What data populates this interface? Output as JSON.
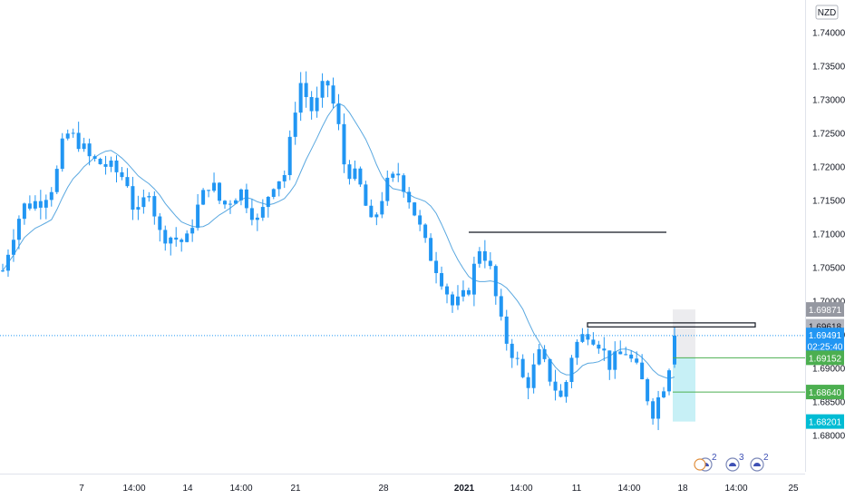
{
  "chart_data": {
    "type": "candlestick",
    "currency_label": "NZD",
    "y_ticks": [
      "1.68000",
      "1.68500",
      "1.69000",
      "1.69500",
      "1.70000",
      "1.70500",
      "1.71000",
      "1.71500",
      "1.72000",
      "1.72500",
      "1.73000",
      "1.73500"
    ],
    "y_top_partial": "1.74000",
    "ylim": [
      1.676,
      1.744
    ],
    "x_ticks": [
      {
        "label": "7",
        "bold": false
      },
      {
        "label": "14:00",
        "bold": false
      },
      {
        "label": "14",
        "bold": false
      },
      {
        "label": "14:00",
        "bold": false
      },
      {
        "label": "21",
        "bold": false
      },
      {
        "label": "28",
        "bold": false
      },
      {
        "label": "2021",
        "bold": true
      },
      {
        "label": "14:00",
        "bold": false
      },
      {
        "label": "11",
        "bold": false
      },
      {
        "label": "14:00",
        "bold": false
      },
      {
        "label": "18",
        "bold": false
      },
      {
        "label": "14:00",
        "bold": false
      },
      {
        "label": "25",
        "bold": false
      }
    ],
    "x_tick_positions": [
      90,
      148,
      207,
      266,
      326,
      423,
      512,
      575,
      636,
      694,
      753,
      812,
      875
    ],
    "price_keypoints": [
      [
        0,
        1.703
      ],
      [
        12,
        1.709
      ],
      [
        25,
        1.714
      ],
      [
        45,
        1.715
      ],
      [
        60,
        1.7175
      ],
      [
        72,
        1.725
      ],
      [
        85,
        1.724
      ],
      [
        100,
        1.721
      ],
      [
        120,
        1.72
      ],
      [
        140,
        1.718
      ],
      [
        150,
        1.712
      ],
      [
        165,
        1.717
      ],
      [
        175,
        1.71
      ],
      [
        190,
        1.7095
      ],
      [
        205,
        1.7085
      ],
      [
        215,
        1.713
      ],
      [
        232,
        1.718
      ],
      [
        245,
        1.714
      ],
      [
        265,
        1.7165
      ],
      [
        285,
        1.7115
      ],
      [
        300,
        1.7175
      ],
      [
        315,
        1.719
      ],
      [
        330,
        1.733
      ],
      [
        345,
        1.728
      ],
      [
        360,
        1.733
      ],
      [
        372,
        1.727
      ],
      [
        380,
        1.72
      ],
      [
        395,
        1.718
      ],
      [
        410,
        1.711
      ],
      [
        425,
        1.717
      ],
      [
        440,
        1.719
      ],
      [
        455,
        1.714
      ],
      [
        470,
        1.708
      ],
      [
        485,
        1.704
      ],
      [
        500,
        1.699
      ],
      [
        515,
        1.701
      ],
      [
        530,
        1.7085
      ],
      [
        540,
        1.705
      ],
      [
        555,
        1.695
      ],
      [
        570,
        1.691
      ],
      [
        580,
        1.687
      ],
      [
        595,
        1.692
      ],
      [
        605,
        1.689
      ],
      [
        620,
        1.685
      ],
      [
        632,
        1.693
      ],
      [
        648,
        1.6955
      ],
      [
        660,
        1.694
      ],
      [
        672,
        1.6905
      ],
      [
        690,
        1.6925
      ],
      [
        705,
        1.689
      ],
      [
        720,
        1.6835
      ],
      [
        732,
        1.6875
      ],
      [
        738,
        1.6905
      ],
      [
        744,
        1.6955
      ]
    ],
    "bar_count": 125,
    "resistance_line": {
      "price": 1.7102
    },
    "zone_box": {
      "top": 1.6967,
      "bottom": 1.6961
    },
    "last_price_line": {
      "price": 1.6948
    },
    "position": {
      "entry": 1.6915,
      "target": 1.6987,
      "stop": 1.682
    },
    "stop_line": {
      "price": 1.6864
    },
    "price_badges": [
      {
        "text": "1.69871",
        "price": 1.6987,
        "bg": "#9598a1",
        "fg": "#ffffff"
      },
      {
        "text": "1.69618",
        "price": 1.6962,
        "bg": "#b2b5be",
        "fg": "#131722"
      },
      {
        "text": "1.69491",
        "price": 1.6949,
        "bg": "#2196f3",
        "fg": "#ffffff"
      },
      {
        "text": "02:25:40",
        "price": 1.69325,
        "bg": "#2196f3",
        "fg": "#ffffff"
      },
      {
        "text": "1.69152",
        "price": 1.6915,
        "bg": "#4caf50",
        "fg": "#ffffff"
      },
      {
        "text": "1.68640",
        "price": 1.6864,
        "bg": "#4caf50",
        "fg": "#ffffff"
      },
      {
        "text": "1.68201",
        "price": 1.682,
        "bg": "#00bcd4",
        "fg": "#ffffff"
      }
    ],
    "event_badges": [
      {
        "sup": "2"
      },
      {
        "sup": "3"
      },
      {
        "sup": "2"
      }
    ],
    "colors": {
      "candle": "#2196f3",
      "ma": "#5aa8e0",
      "grid_text": "#131722",
      "reward_zone": "rgba(0,188,212,0.22)",
      "green_line": "#4caf50",
      "level_line": "#131722"
    }
  }
}
